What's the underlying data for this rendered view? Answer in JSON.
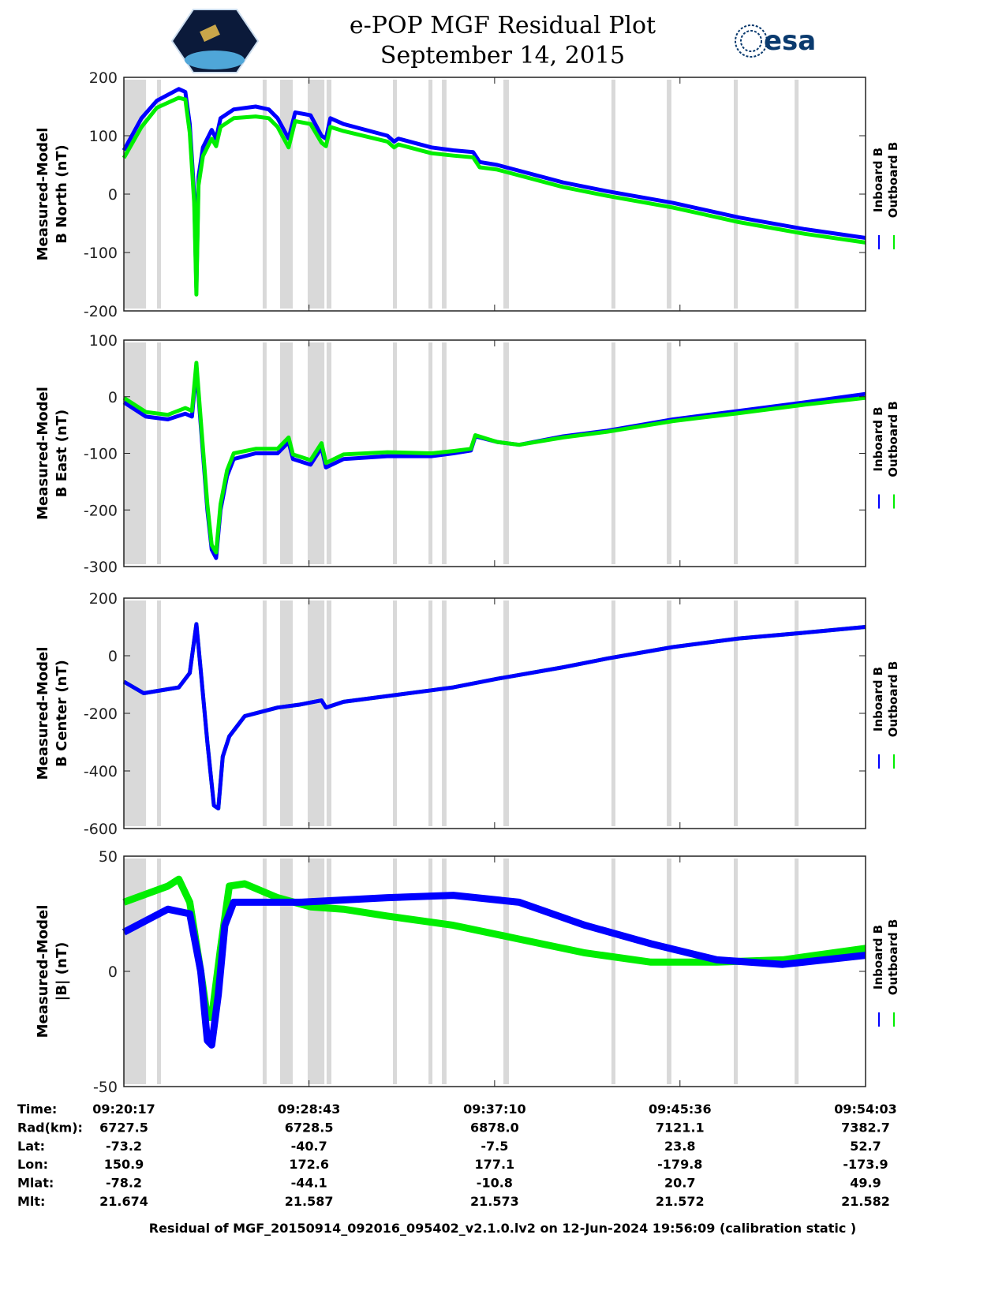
{
  "header": {
    "title": "e-POP MGF Residual Plot",
    "date": "September 14, 2015",
    "left_logo": "cassiope-mission-logo",
    "right_logo_text": "esa"
  },
  "chart_data": {
    "type": "line",
    "x_unit": "minutes since 09:20:17",
    "xlim": [
      0,
      33.77
    ],
    "x_tick_values": [
      0,
      8.43,
      16.88,
      25.32,
      33.77
    ],
    "legend": [
      "Inboard B",
      "Outboard B"
    ],
    "legend_placement": "right",
    "colors": {
      "inboard": "#0000ff",
      "outboard": "#00ee00",
      "gap": "#d9d9d9"
    },
    "data_gaps": [
      [
        0,
        1.01
      ],
      [
        1.51,
        1.69
      ],
      [
        6.32,
        6.5
      ],
      [
        7.11,
        7.69
      ],
      [
        8.37,
        9.13
      ],
      [
        9.23,
        9.45
      ],
      [
        12.25,
        12.43
      ],
      [
        13.87,
        14.05
      ],
      [
        14.48,
        14.69
      ],
      [
        17.28,
        17.53
      ],
      [
        22.2,
        22.38
      ],
      [
        24.72,
        24.93
      ],
      [
        27.77,
        27.95
      ],
      [
        30.54,
        30.72
      ]
    ],
    "panels": [
      {
        "ylabel": [
          "Measured-Model",
          "B North (nT)"
        ],
        "ylim": [
          -200,
          200
        ],
        "yticks": [
          "200",
          "100",
          "0",
          "-100",
          "-200"
        ],
        "ytick_values": [
          200,
          100,
          0,
          -100,
          -200
        ],
        "series": [
          {
            "name": "Inboard B",
            "x": [
              0,
              0.8,
              1.5,
              2.5,
              2.8,
              3.0,
              3.2,
              3.3,
              3.4,
              3.6,
              4.0,
              4.2,
              4.4,
              5.0,
              6.0,
              6.6,
              7.0,
              7.5,
              7.8,
              8.5,
              9.0,
              9.2,
              9.4,
              10,
              12,
              12.3,
              12.5,
              14,
              15,
              15.9,
              16.2,
              17,
              20,
              22,
              25,
              28,
              31,
              33.77
            ],
            "y": [
              75,
              130,
              160,
              180,
              175,
              120,
              0,
              -160,
              30,
              80,
              110,
              95,
              130,
              145,
              150,
              145,
              130,
              95,
              140,
              135,
              100,
              95,
              130,
              120,
              100,
              90,
              95,
              80,
              75,
              72,
              55,
              50,
              20,
              5,
              -15,
              -40,
              -60,
              -75
            ]
          },
          {
            "name": "Outboard B",
            "x": [
              0,
              0.8,
              1.5,
              2.5,
              2.8,
              3.0,
              3.2,
              3.3,
              3.4,
              3.6,
              4.0,
              4.2,
              4.4,
              5.0,
              6.0,
              6.6,
              7.0,
              7.5,
              7.8,
              8.5,
              9.0,
              9.2,
              9.4,
              10,
              12,
              12.3,
              12.5,
              14,
              15,
              15.9,
              16.2,
              17,
              20,
              22,
              25,
              28,
              31,
              33.77
            ],
            "y": [
              62,
              115,
              148,
              165,
              162,
              105,
              -15,
              -172,
              15,
              65,
              95,
              82,
              115,
              130,
              133,
              130,
              115,
              80,
              125,
              120,
              88,
              82,
              115,
              108,
              90,
              80,
              85,
              70,
              66,
              63,
              46,
              42,
              12,
              -3,
              -23,
              -48,
              -68,
              -83
            ]
          }
        ]
      },
      {
        "ylabel": [
          "Measured-Model",
          "B East (nT)"
        ],
        "ylim": [
          -300,
          100
        ],
        "yticks": [
          "100",
          "0",
          "-100",
          "-200",
          "-300"
        ],
        "ytick_values": [
          100,
          0,
          -100,
          -200,
          -300
        ],
        "series": [
          {
            "name": "Inboard B",
            "x": [
              0,
              1,
              2,
              2.8,
              3.1,
              3.3,
              3.5,
              3.8,
              4.0,
              4.2,
              4.4,
              4.7,
              5.0,
              6,
              7,
              7.5,
              7.7,
              8.5,
              9.0,
              9.2,
              10,
              12,
              14,
              15,
              15.8,
              16,
              17,
              18,
              20,
              22,
              25,
              28,
              31,
              33.77
            ],
            "y": [
              -10,
              -35,
              -40,
              -30,
              -35,
              50,
              -50,
              -200,
              -270,
              -285,
              -200,
              -140,
              -110,
              -100,
              -100,
              -80,
              -110,
              -120,
              -90,
              -125,
              -110,
              -105,
              -105,
              -100,
              -95,
              -70,
              -80,
              -85,
              -70,
              -60,
              -40,
              -25,
              -10,
              5
            ]
          },
          {
            "name": "Outboard B",
            "x": [
              0,
              1,
              2,
              2.8,
              3.1,
              3.3,
              3.5,
              3.8,
              4.0,
              4.2,
              4.4,
              4.7,
              5.0,
              6,
              7,
              7.5,
              7.7,
              8.5,
              9.0,
              9.2,
              10,
              12,
              14,
              15,
              15.8,
              16,
              17,
              18,
              20,
              22,
              25,
              28,
              31,
              33.77
            ],
            "y": [
              -2,
              -27,
              -32,
              -20,
              -25,
              60,
              -40,
              -190,
              -262,
              -275,
              -190,
              -130,
              -100,
              -92,
              -92,
              -72,
              -102,
              -112,
              -82,
              -117,
              -102,
              -98,
              -100,
              -96,
              -92,
              -68,
              -80,
              -85,
              -72,
              -62,
              -43,
              -29,
              -14,
              -2
            ]
          }
        ]
      },
      {
        "ylabel": [
          "Measured-Model",
          "B Center (nT)"
        ],
        "ylim": [
          -600,
          200
        ],
        "yticks": [
          "200",
          "0",
          "-200",
          "-400",
          "-600"
        ],
        "ytick_values": [
          200,
          0,
          -200,
          -400,
          -600
        ],
        "series": [
          {
            "name": "Outboard B",
            "x": [
              0,
              0.9,
              2.5,
              3.0,
              3.3,
              3.5,
              3.8,
              4.1,
              4.3,
              4.5,
              4.8,
              5.5,
              7,
              8,
              9.0,
              9.2,
              10,
              12,
              14,
              15,
              17,
              20,
              22,
              25,
              28,
              31,
              33.77
            ],
            "y": [
              -90,
              -130,
              -110,
              -60,
              110,
              -50,
              -300,
              -520,
              -530,
              -350,
              -280,
              -210,
              -180,
              -170,
              -155,
              -180,
              -160,
              -140,
              -120,
              -110,
              -80,
              -40,
              -10,
              30,
              60,
              80,
              100
            ]
          },
          {
            "name": "Inboard B",
            "x": [
              0,
              0.9,
              2.5,
              3.0,
              3.3,
              3.5,
              3.8,
              4.1,
              4.3,
              4.5,
              4.8,
              5.5,
              7,
              8,
              9.0,
              9.2,
              10,
              12,
              14,
              15,
              17,
              20,
              22,
              25,
              28,
              31,
              33.77
            ],
            "y": [
              -90,
              -130,
              -110,
              -60,
              110,
              -50,
              -300,
              -520,
              -530,
              -350,
              -280,
              -210,
              -180,
              -170,
              -155,
              -180,
              -160,
              -140,
              -120,
              -110,
              -80,
              -40,
              -10,
              30,
              60,
              80,
              100
            ]
          }
        ]
      },
      {
        "ylabel": [
          "Measured-Model",
          "|B| (nT)"
        ],
        "ylim": [
          -50,
          50
        ],
        "yticks": [
          "50",
          "0",
          "-50"
        ],
        "ytick_values": [
          50,
          0,
          -50
        ],
        "series": [
          {
            "name": "Outboard B",
            "x": [
              0,
              2,
              2.5,
              3.0,
              3.5,
              3.8,
              4.0,
              4.4,
              4.8,
              5.5,
              7,
              8.5,
              10,
              12,
              15,
              18,
              21,
              24,
              27,
              30,
              33.77
            ],
            "y": [
              30,
              37,
              40,
              30,
              0,
              -20,
              -20,
              10,
              37,
              38,
              32,
              28,
              27,
              24,
              20,
              14,
              8,
              4,
              4,
              5,
              10
            ]
          },
          {
            "name": "Inboard B",
            "x": [
              0,
              2,
              3.0,
              3.5,
              3.8,
              4.0,
              4.3,
              4.6,
              5,
              8,
              12,
              15,
              18,
              21,
              24,
              27,
              30,
              33.77
            ],
            "y": [
              17,
              27,
              25,
              0,
              -30,
              -32,
              -10,
              20,
              30,
              30,
              32,
              33,
              30,
              20,
              12,
              5,
              3,
              7
            ]
          }
        ]
      }
    ]
  },
  "orbit_table": {
    "row_labels": [
      "Time:",
      "Rad(km):",
      "Lat:",
      "Lon:",
      "Mlat:",
      "Mlt:"
    ],
    "columns": [
      [
        "09:20:17",
        "6727.5",
        "-73.2",
        "150.9",
        "-78.2",
        "21.674"
      ],
      [
        "09:28:43",
        "6728.5",
        "-40.7",
        "172.6",
        "-44.1",
        "21.587"
      ],
      [
        "09:37:10",
        "6878.0",
        "-7.5",
        "177.1",
        "-10.8",
        "21.573"
      ],
      [
        "09:45:36",
        "7121.1",
        "23.8",
        "-179.8",
        "20.7",
        "21.572"
      ],
      [
        "09:54:03",
        "7382.7",
        "52.7",
        "-173.9",
        "49.9",
        "21.582"
      ]
    ]
  },
  "footer": "Residual of MGF_20150914_092016_095402_v2.1.0.lv2 on 12-Jun-2024 19:56:09 (calibration static )"
}
